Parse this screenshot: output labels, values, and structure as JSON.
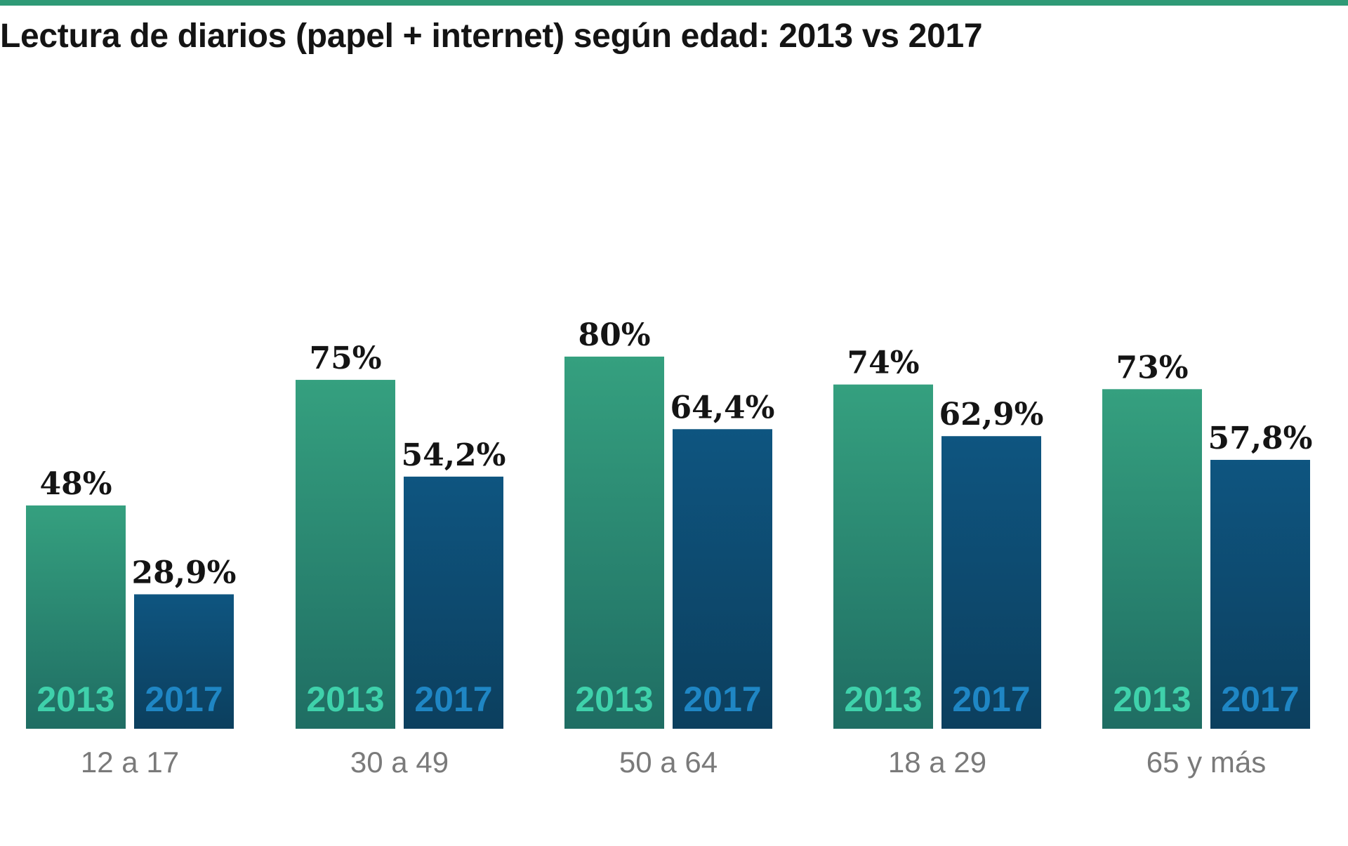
{
  "title": "Lectura de diarios (papel + internet) según edad: 2013 vs 2017",
  "colors": {
    "top_rule": "#2f9a76",
    "bar_2013_top": "#35a07f",
    "bar_2013_bottom": "#1f6d63",
    "bar_2017_top": "#0e5580",
    "bar_2017_bottom": "#0c3f5e",
    "year_2013_text": "#3fd1ab",
    "year_2017_text": "#1f86c4"
  },
  "chart_data": {
    "type": "bar",
    "title": "Lectura de diarios (papel + internet) según edad: 2013 vs 2017",
    "categories": [
      "12 a 17",
      "30 a 49",
      "50 a 64",
      "18 a 29",
      "65 y más"
    ],
    "series": [
      {
        "name": "2013",
        "values": [
          48,
          75,
          80,
          74,
          73
        ],
        "labels": [
          "48%",
          "75%",
          "80%",
          "74%",
          "73%"
        ]
      },
      {
        "name": "2017",
        "values": [
          28.9,
          54.2,
          64.4,
          62.9,
          57.8
        ],
        "labels": [
          "28,9%",
          "54,2%",
          "64,4%",
          "62,9%",
          "57,8%"
        ]
      }
    ],
    "xlabel": "",
    "ylabel": "",
    "ylim": [
      0,
      100
    ],
    "grid": false,
    "legend": "none"
  }
}
